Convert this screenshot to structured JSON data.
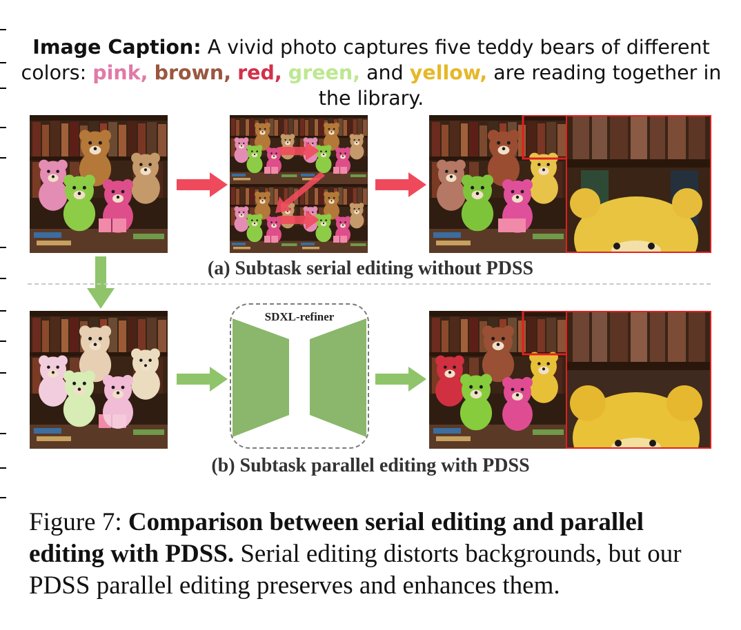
{
  "caption": {
    "lead": "Image Caption:",
    "text_a": " A vivid photo captures five teddy bears of different colors: ",
    "pink": "pink,",
    "brown": "brown,",
    "red": "red,",
    "green": "green,",
    "and": " and ",
    "yellow": "yellow,",
    "text_b": " are reading together in the library."
  },
  "refiner_label": "SDXL-refiner",
  "subcaptions": {
    "a": "(a) Subtask serial editing without PDSS",
    "b": "(b) Subtask parallel editing with PDSS"
  },
  "figure_caption": {
    "number": "Figure 7: ",
    "bold": "Comparison between serial editing and parallel editing with PDSS.",
    "rest": " Serial editing distorts backgrounds, but our PDSS parallel editing preserves and enhances them."
  },
  "colors": {
    "pink": "#e07aa8",
    "brown": "#9a5740",
    "red": "#d3304a",
    "green": "#bde890",
    "yellow": "#e6b828",
    "arrow_red": "#ef4a5c",
    "arrow_green": "#8fc46a",
    "refiner_green": "#8ab76b",
    "zoom_border": "#e02020"
  }
}
